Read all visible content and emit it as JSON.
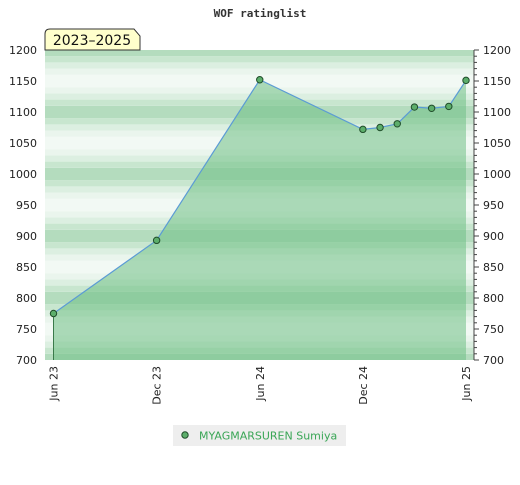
{
  "chart_data": {
    "type": "area",
    "title": "WOF ratinglist",
    "badge": "2023–2025",
    "xlabel": "",
    "ylabel": "",
    "ylim": [
      700,
      1200
    ],
    "y_ticks": [
      700,
      750,
      800,
      850,
      900,
      950,
      1000,
      1050,
      1100,
      1150,
      1200
    ],
    "x_ticks": [
      "Jun 23",
      "Dec 23",
      "Jun 24",
      "Dec 24",
      "Jun 25"
    ],
    "legend_position": "bottom-center",
    "grid": "horizontal bands",
    "colors": {
      "fill": "#6fbf85",
      "line": "#5b9bd5",
      "marker": "#5cae6b",
      "band_dark": "#b4dcbe",
      "band_light": "#f2f9f4",
      "badge_bg": "#ffffcc",
      "legend_text": "#3aa656"
    },
    "series": [
      {
        "name": "MYAGMARSUREN Sumiya",
        "points": [
          {
            "x": "2023-06",
            "y": 775
          },
          {
            "x": "2023-12",
            "y": 893
          },
          {
            "x": "2024-06",
            "y": 1152
          },
          {
            "x": "2024-12",
            "y": 1072
          },
          {
            "x": "2025-01",
            "y": 1075
          },
          {
            "x": "2025-02",
            "y": 1081
          },
          {
            "x": "2025-03",
            "y": 1108
          },
          {
            "x": "2025-04",
            "y": 1106
          },
          {
            "x": "2025-05",
            "y": 1109
          },
          {
            "x": "2025-06",
            "y": 1151
          }
        ]
      }
    ]
  }
}
